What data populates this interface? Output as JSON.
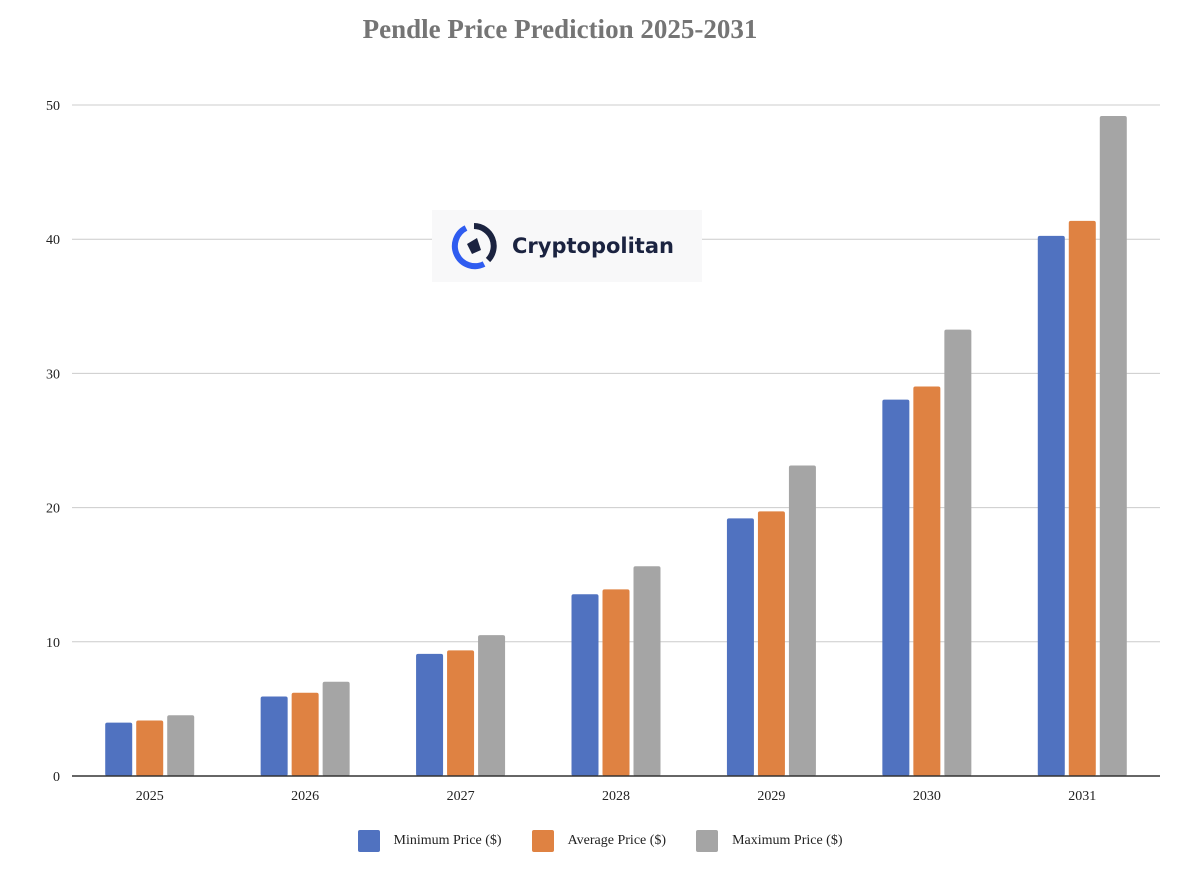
{
  "chart_data": {
    "type": "bar",
    "title": "Pendle Price Prediction 2025-2031",
    "xlabel": "",
    "ylabel": "",
    "ylim": [
      0,
      50
    ],
    "yticks": [
      "0",
      "10",
      "20",
      "30",
      "40",
      "50"
    ],
    "grid": true,
    "legend_position": "bottom",
    "categories": [
      "2025",
      "2026",
      "2027",
      "2028",
      "2029",
      "2030",
      "2031"
    ],
    "series": [
      {
        "name": "Minimum Price ($)",
        "color": "#5072c0",
        "values": [
          3.98,
          5.92,
          9.1,
          13.54,
          19.2,
          28.05,
          40.25
        ]
      },
      {
        "name": "Average Price ($)",
        "color": "#df8242",
        "values": [
          4.14,
          6.2,
          9.36,
          13.91,
          19.72,
          29.02,
          41.37
        ]
      },
      {
        "name": "Maximum Price ($)",
        "color": "#a5a5a5",
        "values": [
          4.53,
          7.02,
          10.5,
          15.63,
          23.14,
          33.26,
          49.18
        ]
      }
    ]
  },
  "watermark": {
    "text": "Cryptopolitan",
    "accent": "#2f5cf0"
  }
}
